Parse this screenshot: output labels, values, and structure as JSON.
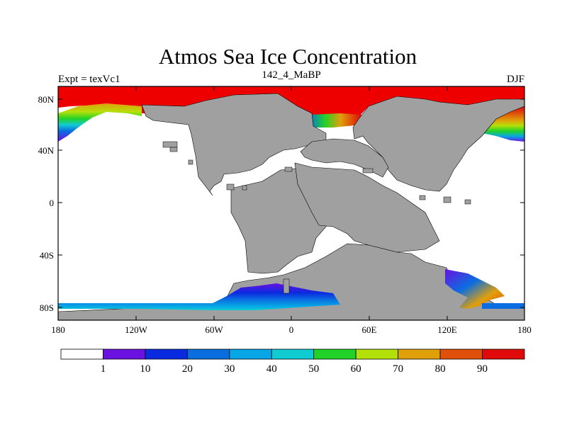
{
  "title": "Atmos Sea Ice Concentration",
  "left_label": "Expt = texVc1",
  "center_label": "142_4_MaBP",
  "right_label": "DJF",
  "y_axis": {
    "ticks": [
      "80N",
      "40N",
      "0",
      "40S",
      "80S"
    ]
  },
  "x_axis": {
    "ticks": [
      "180",
      "120W",
      "60W",
      "0",
      "60E",
      "120E",
      "180"
    ]
  },
  "colorbar": {
    "labels": [
      "1",
      "10",
      "20",
      "30",
      "40",
      "50",
      "60",
      "70",
      "80",
      "90"
    ],
    "colors": [
      "#ffffff",
      "#6a12e0",
      "#0a2ae0",
      "#0a6ee0",
      "#08a6e6",
      "#10ccd2",
      "#22d228",
      "#b4e00a",
      "#e0a00a",
      "#e0500a",
      "#e00a0a"
    ]
  },
  "colors": {
    "land": "#a0a0a0",
    "ice_max": "#ee0000"
  }
}
